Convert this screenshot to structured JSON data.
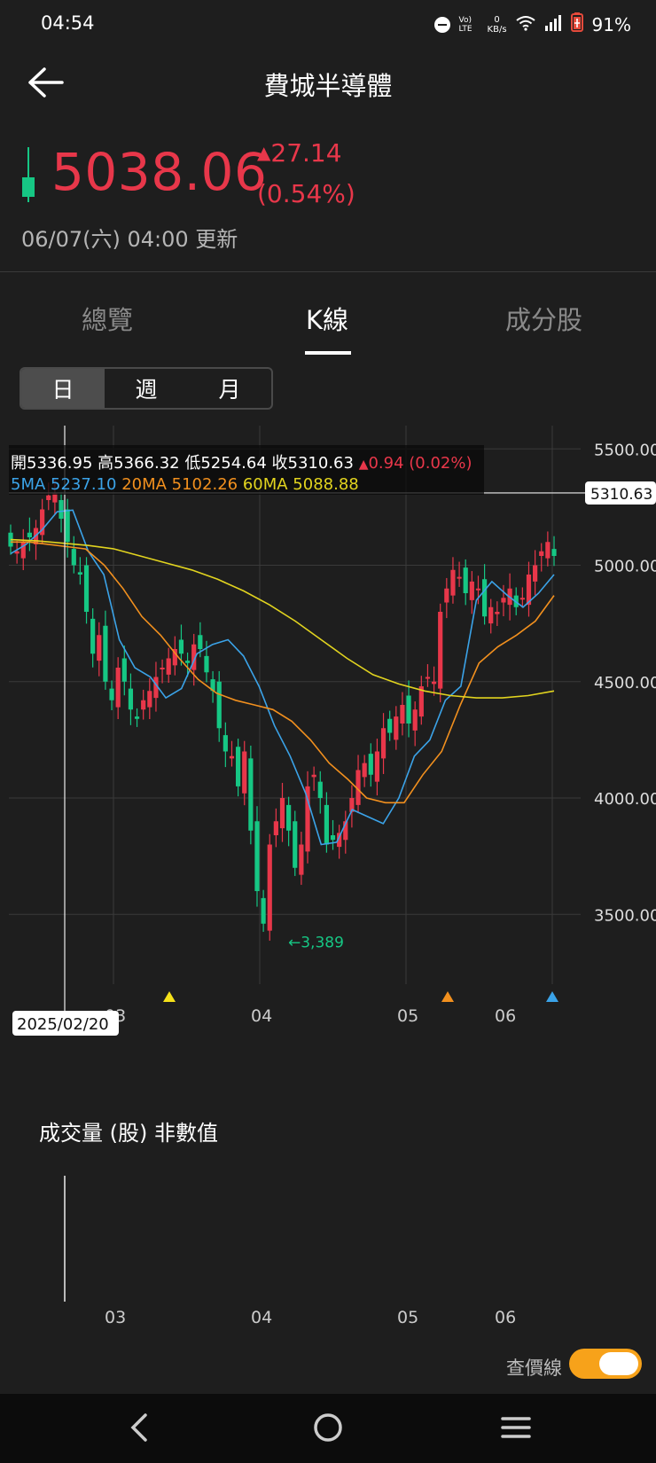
{
  "status_bar": {
    "time": "04:54",
    "battery": "91%",
    "net_speed_top": "0",
    "net_speed_unit": "KB/s",
    "volte": "Vo) LTE"
  },
  "header": {
    "title": "費城半導體"
  },
  "quote": {
    "price": "5038.06",
    "change": "27.14",
    "change_pct": "(0.54%)",
    "updated": "06/07(六) 04:00 更新"
  },
  "tabs": [
    {
      "label": "總覽"
    },
    {
      "label": "K線"
    },
    {
      "label": "成分股"
    }
  ],
  "period_options": [
    {
      "label": "日"
    },
    {
      "label": "週"
    },
    {
      "label": "月"
    }
  ],
  "ohlc": {
    "open": "開5336.95",
    "high": "高5366.32",
    "low": "低5254.64",
    "close": "收5310.63",
    "chg": "0.94 (0.02%)"
  },
  "ma": {
    "ma5": "5MA 5237.10",
    "ma20": "20MA 5102.26",
    "ma60": "60MA 5088.88"
  },
  "chart_data": {
    "type": "line",
    "title": "",
    "y_ticks": [
      "5500.00",
      "5000.00",
      "4500.00",
      "4000.00",
      "3500.00"
    ],
    "ylim": [
      3200,
      5600
    ],
    "x_ticks": [
      "03",
      "04",
      "05",
      "06"
    ],
    "crosshair_date": "2025/02/20",
    "crosshair_price": "5310.63",
    "low_label": "←3,389",
    "series": [
      {
        "name": "5MA",
        "color": "#3ba3e8",
        "values": [
          5050,
          5090,
          5150,
          5230,
          5237,
          5060,
          4960,
          4680,
          4560,
          4520,
          4430,
          4470,
          4620,
          4660,
          4680,
          4610,
          4480,
          4310,
          4180,
          4020,
          3800,
          3810,
          3950,
          3920,
          3890,
          4000,
          4180,
          4250,
          4420,
          4480,
          4850,
          4930,
          4870,
          4820,
          4880,
          4960
        ]
      },
      {
        "name": "20MA",
        "color": "#f2901e",
        "values": [
          5100,
          5100,
          5090,
          5080,
          5070,
          5000,
          4900,
          4780,
          4700,
          4600,
          4510,
          4450,
          4420,
          4400,
          4380,
          4330,
          4250,
          4150,
          4080,
          4000,
          3980,
          3980,
          4100,
          4200,
          4400,
          4580,
          4650,
          4700,
          4760,
          4870
        ]
      },
      {
        "name": "60MA",
        "color": "#e2d41f",
        "values": [
          5110,
          5105,
          5095,
          5085,
          5070,
          5040,
          5010,
          4980,
          4940,
          4890,
          4830,
          4760,
          4680,
          4600,
          4530,
          4490,
          4460,
          4440,
          4430,
          4430,
          4440,
          4460
        ]
      }
    ]
  },
  "volume": {
    "title": "成交量 (股) 非數值"
  },
  "toggle": {
    "label": "查價線"
  }
}
